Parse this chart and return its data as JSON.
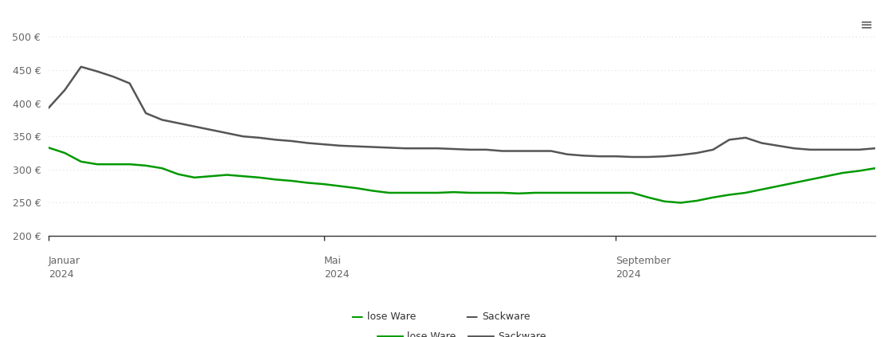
{
  "background_color": "#ffffff",
  "grid_color": "#dddddd",
  "ylim": [
    200,
    515
  ],
  "yticks": [
    200,
    250,
    300,
    350,
    400,
    450,
    500
  ],
  "ytick_labels": [
    "200 €",
    "250 €",
    "300 €",
    "350 €",
    "400 €",
    "450 €",
    "500 €"
  ],
  "xtick_positions": [
    0,
    17,
    35
  ],
  "xtick_month_labels": [
    "Januar",
    "Mai",
    "September"
  ],
  "xtick_year_labels": [
    "2024",
    "2024",
    "2024"
  ],
  "lose_ware_color": "#009900",
  "sackware_color": "#555555",
  "line_width": 1.8,
  "legend_lose_label": "lose Ware",
  "legend_sack_label": "Sackware",
  "lose_ware_x": [
    0,
    1,
    2,
    3,
    4,
    5,
    6,
    7,
    8,
    9,
    10,
    11,
    12,
    13,
    14,
    15,
    16,
    17,
    18,
    19,
    20,
    21,
    22,
    23,
    24,
    25,
    26,
    27,
    28,
    29,
    30,
    31,
    32,
    33,
    34,
    35,
    36,
    37,
    38,
    39,
    40,
    41,
    42,
    43,
    44,
    45,
    46,
    47,
    48,
    49,
    50,
    51
  ],
  "lose_ware_y": [
    333,
    325,
    312,
    308,
    308,
    308,
    306,
    302,
    293,
    288,
    290,
    292,
    290,
    288,
    285,
    283,
    280,
    278,
    275,
    272,
    268,
    265,
    265,
    265,
    265,
    266,
    265,
    265,
    265,
    264,
    265,
    265,
    265,
    265,
    265,
    265,
    265,
    258,
    252,
    250,
    253,
    258,
    262,
    265,
    270,
    275,
    280,
    285,
    290,
    295,
    298,
    302
  ],
  "sackware_x": [
    0,
    1,
    2,
    3,
    4,
    5,
    6,
    7,
    8,
    9,
    10,
    11,
    12,
    13,
    14,
    15,
    16,
    17,
    18,
    19,
    20,
    21,
    22,
    23,
    24,
    25,
    26,
    27,
    28,
    29,
    30,
    31,
    32,
    33,
    34,
    35,
    36,
    37,
    38,
    39,
    40,
    41,
    42,
    43,
    44,
    45,
    46,
    47,
    48,
    49,
    50,
    51
  ],
  "sackware_y": [
    393,
    420,
    455,
    448,
    440,
    430,
    385,
    375,
    370,
    365,
    360,
    355,
    350,
    348,
    345,
    343,
    340,
    338,
    336,
    335,
    334,
    333,
    332,
    332,
    332,
    331,
    330,
    330,
    328,
    328,
    328,
    328,
    323,
    321,
    320,
    320,
    319,
    319,
    320,
    322,
    325,
    330,
    345,
    348,
    340,
    336,
    332,
    330,
    330,
    330,
    330,
    332
  ],
  "hamburger_icon": "≡",
  "xlim": [
    0,
    51
  ]
}
